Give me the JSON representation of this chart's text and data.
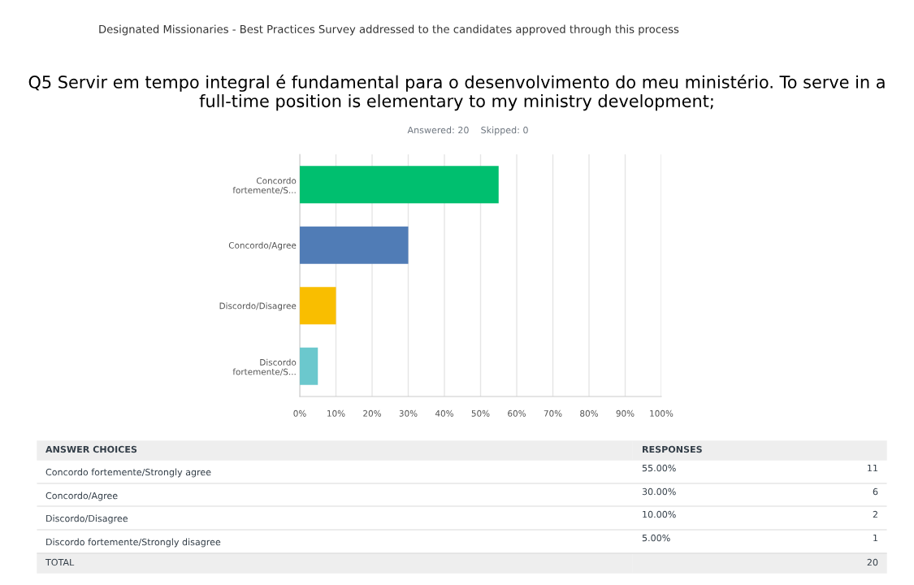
{
  "chart_data": [
    {
      "type": "bar",
      "orientation": "horizontal",
      "title": "Q5 Servir em tempo integral é fundamental para o desenvolvimento do meu ministério. To serve in a full-time position is elementary to my ministry development;",
      "subtitle": "Answered: 20    Skipped: 0",
      "annotations": [
        "Designated Missionaries - Best Practices Survey addressed to the candidates approved through this process"
      ],
      "categories": [
        "Concordo fortemente/S...",
        "Concordo/Agree",
        "Discordo/Disagree",
        "Discordo fortemente/S..."
      ],
      "values": [
        55,
        30,
        10,
        5
      ],
      "colors": [
        "#00bf6f",
        "#507cb6",
        "#f9be00",
        "#6bc8cd"
      ],
      "xlim": [
        0,
        100
      ],
      "xticks": [
        {
          "value": 0,
          "label": "0%"
        },
        {
          "value": 10,
          "label": "10%"
        },
        {
          "value": 20,
          "label": "20%"
        },
        {
          "value": 30,
          "label": "30%"
        },
        {
          "value": 40,
          "label": "40%"
        },
        {
          "value": 50,
          "label": "50%"
        },
        {
          "value": 60,
          "label": "60%"
        },
        {
          "value": 70,
          "label": "70%"
        },
        {
          "value": 80,
          "label": "80%"
        },
        {
          "value": 90,
          "label": "90%"
        },
        {
          "value": 100,
          "label": "100%"
        }
      ],
      "grid": "x",
      "legend": false
    },
    {
      "type": "other",
      "categories": [
        "Concordo fortemente/Strongly agree",
        "Concordo/Agree",
        "Discordo/Disagree",
        "Discordo fortemente/Strongly disagree"
      ],
      "values": [
        11,
        6,
        2,
        1
      ],
      "data_labels": true,
      "annotations": [
        "ANSWER CHOICES",
        "RESPONSES",
        "55.00%",
        "30.00%",
        "10.00%",
        "5.00%",
        "TOTAL",
        "20"
      ]
    }
  ]
}
